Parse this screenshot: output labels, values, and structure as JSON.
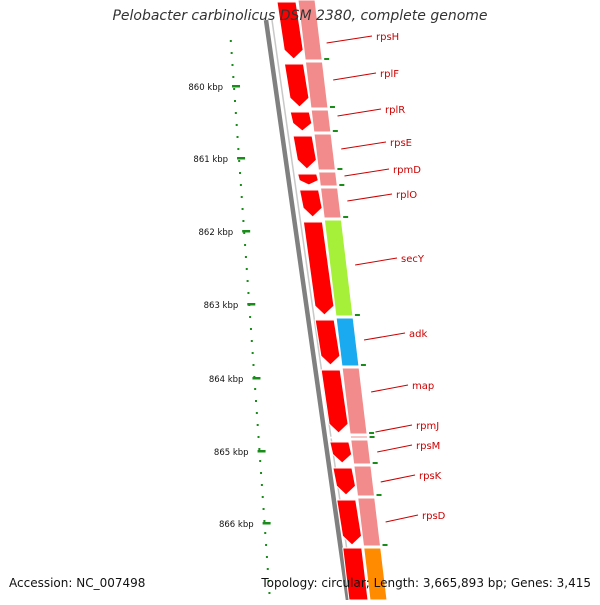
{
  "title": "Pelobacter carbinolicus DSM 2380, complete genome",
  "accession": "Accession: NC_007498",
  "topology": "Topology: circular; Length: 3,665,893 bp; Genes: 3,415",
  "ticks": [
    {
      "label": "860 kbp"
    },
    {
      "label": "861 kbp"
    },
    {
      "label": "862 kbp"
    },
    {
      "label": "863 kbp"
    },
    {
      "label": "864 kbp"
    },
    {
      "label": "865 kbp"
    },
    {
      "label": "866 kbp"
    }
  ],
  "colors": {
    "gene_red": "#ff0000",
    "cds_pink": "#f28c8c",
    "secY_green": "#a6f03a",
    "adk_blue": "#1aaaf0",
    "orange": "#ff8c00",
    "label_red": "#cc0000",
    "tick_green": "#1a8c1a",
    "backbone": "#808080"
  },
  "genes": [
    {
      "name": "rpsH",
      "color": "pink"
    },
    {
      "name": "rplF",
      "color": "pink"
    },
    {
      "name": "rplR",
      "color": "pink"
    },
    {
      "name": "rpsE",
      "color": "pink"
    },
    {
      "name": "rpmD",
      "color": "pink"
    },
    {
      "name": "rplO",
      "color": "pink"
    },
    {
      "name": "secY",
      "color": "green"
    },
    {
      "name": "adk",
      "color": "blue"
    },
    {
      "name": "map",
      "color": "pink"
    },
    {
      "name": "rpmJ",
      "color": "pink"
    },
    {
      "name": "rpsM",
      "color": "pink"
    },
    {
      "name": "rpsK",
      "color": "pink"
    },
    {
      "name": "rpsD",
      "color": "pink"
    }
  ]
}
